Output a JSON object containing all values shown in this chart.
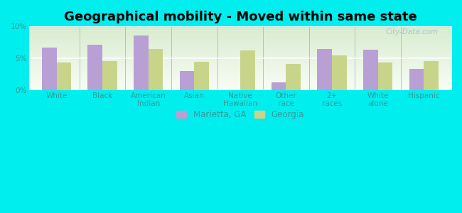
{
  "title": "Geographical mobility - Moved within same state",
  "categories": [
    "White",
    "Black",
    "American\nIndian",
    "Asian",
    "Native\nHawaiian",
    "Other\nrace",
    "2+\nraces",
    "White\nalone",
    "Hispanic"
  ],
  "marietta_values": [
    6.7,
    7.1,
    8.6,
    3.0,
    0.0,
    1.2,
    6.5,
    6.4,
    3.3
  ],
  "georgia_values": [
    4.4,
    4.6,
    6.5,
    4.5,
    6.2,
    4.1,
    5.5,
    4.4,
    4.6
  ],
  "marietta_color": "#b89fd4",
  "georgia_color": "#c8d48a",
  "background_color": "#00eeee",
  "plot_bg_top": "#f8fdf5",
  "plot_bg_bottom": "#d8ecd0",
  "ylim": [
    0,
    10
  ],
  "yticks": [
    0,
    5,
    10
  ],
  "ytick_labels": [
    "0%",
    "5%",
    "10%"
  ],
  "legend_marietta": "Marietta, GA",
  "legend_georgia": "Georgia",
  "bar_width": 0.32,
  "title_fontsize": 13,
  "tick_fontsize": 7.5,
  "legend_fontsize": 8.5,
  "label_color": "#339999",
  "watermark": "City-Data.com"
}
